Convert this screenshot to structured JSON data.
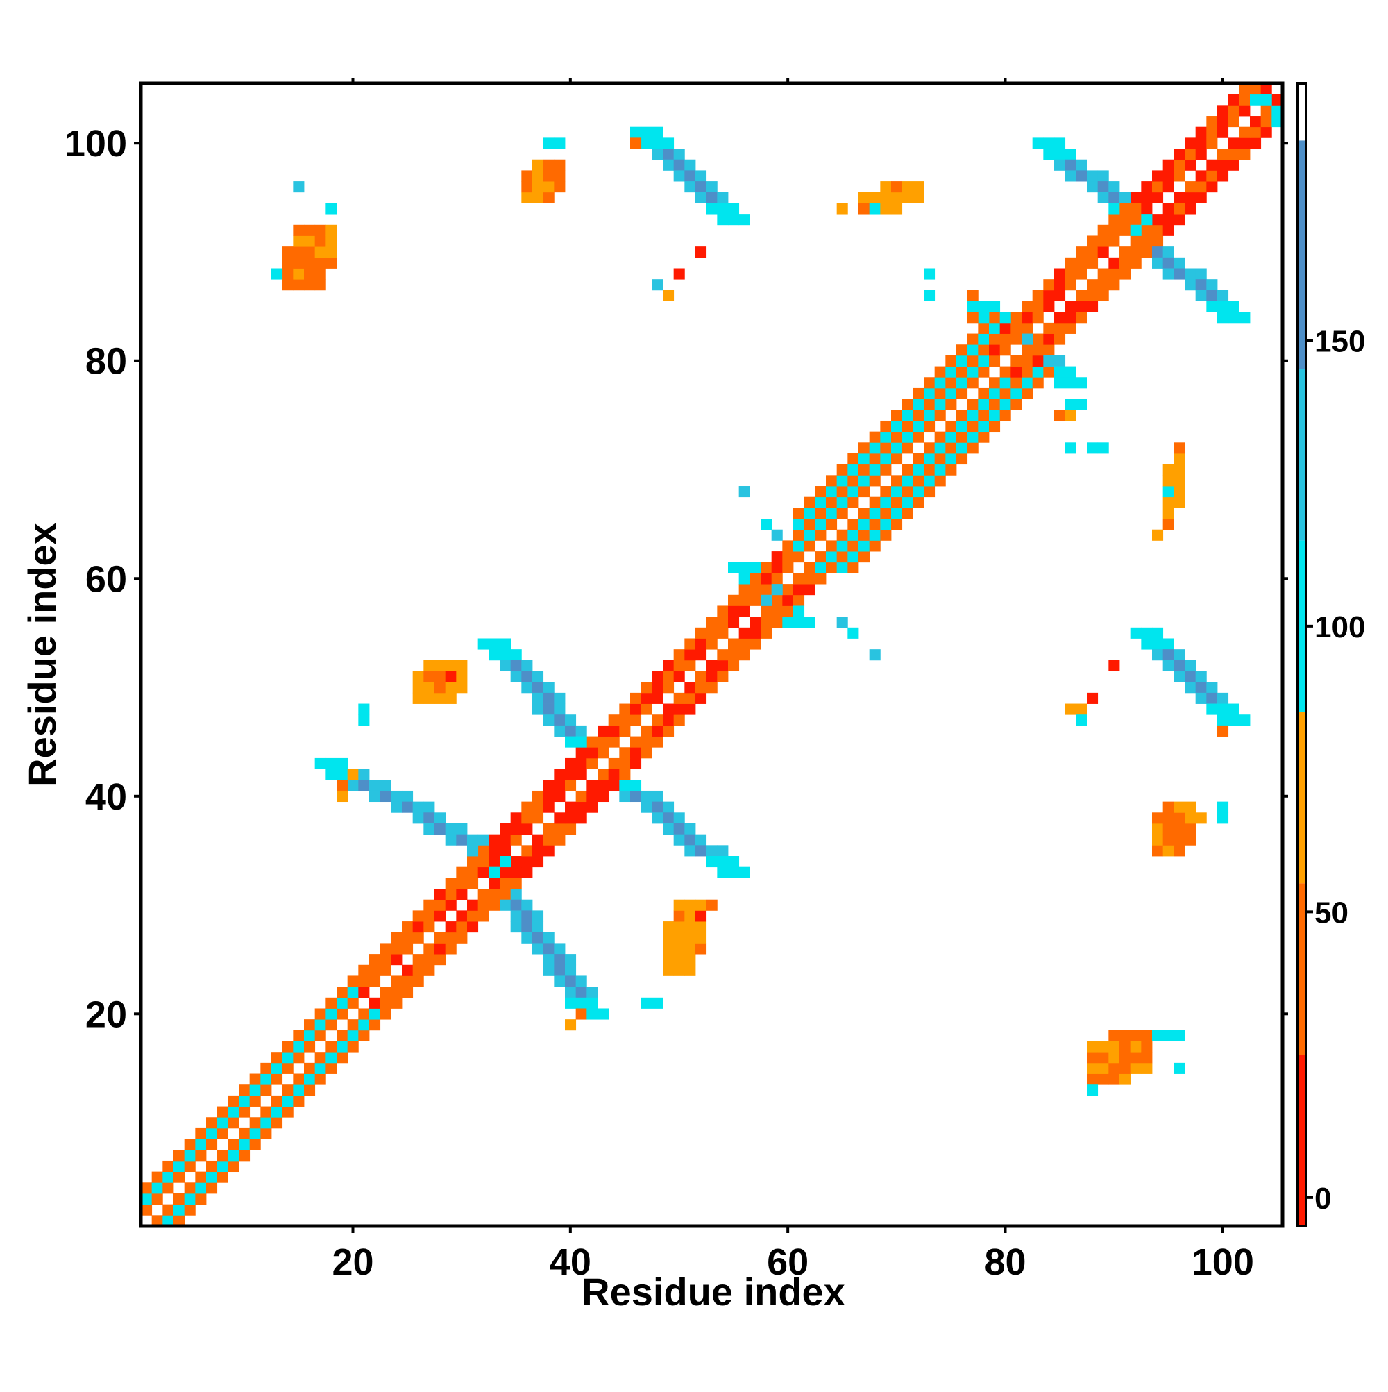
{
  "chart_data": {
    "type": "heatmap",
    "title": "",
    "xlabel": "Residue index",
    "ylabel": "Residue index",
    "xlim": [
      1,
      105
    ],
    "ylim": [
      1,
      105
    ],
    "xticks": [
      "20",
      "40",
      "60",
      "80",
      "100"
    ],
    "yticks": [
      "20",
      "40",
      "60",
      "80",
      "100"
    ],
    "xtick_values": [
      20,
      40,
      60,
      80,
      100
    ],
    "ytick_values": [
      20,
      40,
      60,
      80,
      100
    ],
    "colorbar": {
      "range": [
        -5,
        195
      ],
      "ticks": [
        "0",
        "50",
        "100",
        "150"
      ],
      "tick_values": [
        0,
        50,
        100,
        150
      ],
      "bands": [
        {
          "from": -5,
          "to": 25,
          "color": "#ff1a00"
        },
        {
          "from": 25,
          "to": 55,
          "color": "#ff6a00"
        },
        {
          "from": 55,
          "to": 85,
          "color": "#ffa000"
        },
        {
          "from": 85,
          "to": 115,
          "color": "#00e5ee"
        },
        {
          "from": 115,
          "to": 145,
          "color": "#29c3e0"
        },
        {
          "from": 145,
          "to": 185,
          "color": "#4e8fc8"
        },
        {
          "from": 185,
          "to": 195,
          "color": "#ffffff"
        }
      ]
    },
    "palette": {
      "red": "#ff1a00",
      "orange": "#ff6a00",
      "amber": "#ffa000",
      "cyan": "#00e5ee",
      "sky": "#29c3e0",
      "steel": "#4e8fc8"
    },
    "diagonal_segments": [
      {
        "start": 1,
        "end": 9,
        "width": 3,
        "parallel_color": "orange",
        "antiparallel_color": "cyan",
        "mix": "alternating"
      },
      {
        "start": 10,
        "end": 20,
        "width": 3,
        "parallel_color": "orange",
        "antiparallel_color": "cyan",
        "mix": "alternating"
      },
      {
        "start": 21,
        "end": 33,
        "width": 3,
        "parallel_color": "orange",
        "antiparallel_color": "red",
        "mix": "mostly_orange"
      },
      {
        "start": 33,
        "end": 43,
        "width": 3,
        "parallel_color": "red",
        "antiparallel_color": "orange",
        "mix": "mostly_red"
      },
      {
        "start": 43,
        "end": 61,
        "width": 3,
        "parallel_color": "orange",
        "antiparallel_color": "red",
        "mix": "mostly_orange"
      },
      {
        "start": 61,
        "end": 79,
        "width": 5,
        "parallel_color": "orange",
        "antiparallel_color": "cyan",
        "mix": "alternating"
      },
      {
        "start": 79,
        "end": 92,
        "width": 3,
        "parallel_color": "orange",
        "antiparallel_color": "red",
        "mix": "mostly_orange"
      },
      {
        "start": 92,
        "end": 105,
        "width": 3,
        "parallel_color": "red",
        "antiparallel_color": "orange",
        "mix": "mostly_red"
      }
    ],
    "antidiagonal_bands": [
      {
        "x_from": 18,
        "y_from": 43,
        "x_to": 34,
        "y_to": 34,
        "width": 3,
        "end_color": "cyan",
        "body_color": "steel"
      },
      {
        "x_from": 33,
        "y_from": 33,
        "x_to": 42,
        "y_to": 20,
        "width": 3,
        "end_color": "cyan",
        "body_color": "steel"
      },
      {
        "x_from": 33,
        "y_from": 54,
        "x_to": 42,
        "y_to": 44,
        "width": 3,
        "end_color": "cyan",
        "body_color": "steel"
      },
      {
        "x_from": 44,
        "y_from": 42,
        "x_to": 55,
        "y_to": 33,
        "width": 3,
        "end_color": "cyan",
        "body_color": "steel"
      },
      {
        "x_from": 47,
        "y_from": 101,
        "x_to": 55,
        "y_to": 93,
        "width": 3,
        "end_color": "cyan",
        "body_color": "steel"
      },
      {
        "x_from": 56,
        "y_from": 61,
        "x_to": 61,
        "y_to": 56,
        "width": 2,
        "end_color": "cyan",
        "body_color": "cyan"
      },
      {
        "x_from": 78,
        "y_from": 85,
        "x_to": 86,
        "y_to": 78,
        "width": 3,
        "end_color": "cyan",
        "body_color": "sky"
      },
      {
        "x_from": 84,
        "y_from": 100,
        "x_to": 92,
        "y_to": 93,
        "width": 3,
        "end_color": "cyan",
        "body_color": "steel"
      },
      {
        "x_from": 92,
        "y_from": 92,
        "x_to": 101,
        "y_to": 84,
        "width": 3,
        "end_color": "cyan",
        "body_color": "steel"
      },
      {
        "x_from": 93,
        "y_from": 55,
        "x_to": 101,
        "y_to": 47,
        "width": 3,
        "end_color": "cyan",
        "body_color": "steel"
      }
    ],
    "clusters": [
      {
        "x_from": 14,
        "x_to": 18,
        "y_from": 87,
        "y_to": 92,
        "color": "orange"
      },
      {
        "x_from": 36,
        "x_to": 39,
        "y_from": 95,
        "y_to": 98,
        "color": "orange"
      },
      {
        "x_from": 26,
        "x_to": 30,
        "y_from": 49,
        "y_to": 52,
        "color": "amber"
      },
      {
        "x_from": 49,
        "x_to": 52,
        "y_from": 24,
        "y_to": 30,
        "color": "amber"
      },
      {
        "x_from": 67,
        "x_to": 72,
        "y_from": 94,
        "y_to": 96,
        "color": "amber"
      },
      {
        "x_from": 88,
        "x_to": 93,
        "y_from": 14,
        "y_to": 18,
        "color": "orange"
      },
      {
        "x_from": 94,
        "x_to": 97,
        "y_from": 35,
        "y_to": 39,
        "color": "orange"
      },
      {
        "x_from": 95,
        "x_to": 96,
        "y_from": 65,
        "y_to": 72,
        "color": "amber"
      }
    ],
    "isolated_points": [
      {
        "x": 15,
        "y": 96,
        "color": "sky"
      },
      {
        "x": 18,
        "y": 94,
        "color": "cyan"
      },
      {
        "x": 13,
        "y": 88,
        "color": "cyan"
      },
      {
        "x": 38,
        "y": 100,
        "color": "cyan"
      },
      {
        "x": 39,
        "y": 100,
        "color": "cyan"
      },
      {
        "x": 46,
        "y": 100,
        "color": "orange"
      },
      {
        "x": 52,
        "y": 90,
        "color": "red"
      },
      {
        "x": 50,
        "y": 88,
        "color": "red"
      },
      {
        "x": 48,
        "y": 87,
        "color": "sky"
      },
      {
        "x": 49,
        "y": 86,
        "color": "amber"
      },
      {
        "x": 65,
        "y": 94,
        "color": "amber"
      },
      {
        "x": 68,
        "y": 94,
        "color": "cyan"
      },
      {
        "x": 73,
        "y": 88,
        "color": "cyan"
      },
      {
        "x": 73,
        "y": 86,
        "color": "cyan"
      },
      {
        "x": 77,
        "y": 86,
        "color": "orange"
      },
      {
        "x": 77,
        "y": 84,
        "color": "orange"
      },
      {
        "x": 86,
        "y": 76,
        "color": "cyan"
      },
      {
        "x": 87,
        "y": 76,
        "color": "cyan"
      },
      {
        "x": 85,
        "y": 75,
        "color": "orange"
      },
      {
        "x": 86,
        "y": 75,
        "color": "amber"
      },
      {
        "x": 86,
        "y": 72,
        "color": "cyan"
      },
      {
        "x": 88,
        "y": 72,
        "color": "cyan"
      },
      {
        "x": 89,
        "y": 72,
        "color": "cyan"
      },
      {
        "x": 95,
        "y": 68,
        "color": "cyan"
      },
      {
        "x": 94,
        "y": 64,
        "color": "amber"
      },
      {
        "x": 56,
        "y": 68,
        "color": "sky"
      },
      {
        "x": 58,
        "y": 65,
        "color": "cyan"
      },
      {
        "x": 59,
        "y": 64,
        "color": "sky"
      },
      {
        "x": 65,
        "y": 56,
        "color": "sky"
      },
      {
        "x": 66,
        "y": 55,
        "color": "cyan"
      },
      {
        "x": 68,
        "y": 53,
        "color": "sky"
      },
      {
        "x": 29,
        "y": 51,
        "color": "red"
      },
      {
        "x": 21,
        "y": 48,
        "color": "cyan"
      },
      {
        "x": 21,
        "y": 47,
        "color": "cyan"
      },
      {
        "x": 20,
        "y": 42,
        "color": "amber"
      },
      {
        "x": 19,
        "y": 41,
        "color": "orange"
      },
      {
        "x": 19,
        "y": 40,
        "color": "amber"
      },
      {
        "x": 53,
        "y": 30,
        "color": "orange"
      },
      {
        "x": 52,
        "y": 29,
        "color": "red"
      },
      {
        "x": 47,
        "y": 21,
        "color": "cyan"
      },
      {
        "x": 48,
        "y": 21,
        "color": "cyan"
      },
      {
        "x": 41,
        "y": 20,
        "color": "orange"
      },
      {
        "x": 40,
        "y": 19,
        "color": "amber"
      },
      {
        "x": 90,
        "y": 52,
        "color": "red"
      },
      {
        "x": 88,
        "y": 49,
        "color": "red"
      },
      {
        "x": 87,
        "y": 48,
        "color": "amber"
      },
      {
        "x": 86,
        "y": 48,
        "color": "amber"
      },
      {
        "x": 87,
        "y": 47,
        "color": "cyan"
      },
      {
        "x": 100,
        "y": 46,
        "color": "orange"
      },
      {
        "x": 97,
        "y": 39,
        "color": "amber"
      },
      {
        "x": 98,
        "y": 38,
        "color": "amber"
      },
      {
        "x": 100,
        "y": 39,
        "color": "cyan"
      },
      {
        "x": 100,
        "y": 38,
        "color": "cyan"
      },
      {
        "x": 94,
        "y": 18,
        "color": "cyan"
      },
      {
        "x": 95,
        "y": 18,
        "color": "cyan"
      },
      {
        "x": 96,
        "y": 18,
        "color": "cyan"
      },
      {
        "x": 96,
        "y": 15,
        "color": "cyan"
      },
      {
        "x": 88,
        "y": 13,
        "color": "cyan"
      },
      {
        "x": 103,
        "y": 104,
        "color": "cyan"
      },
      {
        "x": 104,
        "y": 104,
        "color": "cyan"
      },
      {
        "x": 105,
        "y": 103,
        "color": "cyan"
      },
      {
        "x": 105,
        "y": 102,
        "color": "cyan"
      }
    ]
  }
}
